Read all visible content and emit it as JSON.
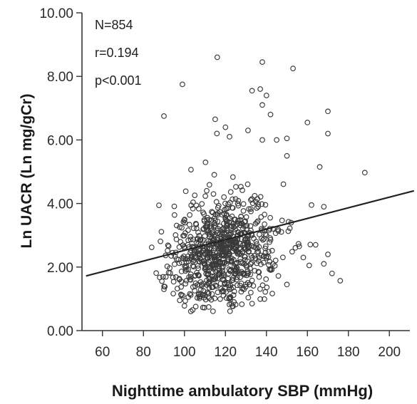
{
  "chart_data": {
    "type": "scatter",
    "xlabel": "Nighttime ambulatory SBP (mmHg)",
    "ylabel": "Ln UACR (Ln mg/gCr)",
    "xlim": [
      50,
      210
    ],
    "ylim": [
      0,
      10
    ],
    "x_ticks": [
      "60",
      "80",
      "100",
      "120",
      "140",
      "160",
      "180",
      "200"
    ],
    "y_ticks": [
      "0.00",
      "2.00",
      "4.00",
      "6.00",
      "8.00",
      "10.00"
    ],
    "annotations": [
      "N=854",
      "r=0.194",
      "p<0.001"
    ],
    "regression_line": {
      "x": [
        52,
        212
      ],
      "y": [
        1.72,
        4.4
      ]
    },
    "grid": false,
    "n_points": 854,
    "points": [
      [
        116,
        8.6
      ],
      [
        138,
        8.45
      ],
      [
        153,
        8.25
      ],
      [
        99,
        7.75
      ],
      [
        137,
        7.6
      ],
      [
        133,
        7.55
      ],
      [
        140,
        7.4
      ],
      [
        138,
        7.1
      ],
      [
        142,
        6.8
      ],
      [
        90,
        6.75
      ],
      [
        170,
        6.9
      ],
      [
        160,
        6.55
      ],
      [
        115,
        6.65
      ],
      [
        170,
        6.2
      ],
      [
        131,
        6.3
      ],
      [
        120,
        6.4
      ],
      [
        122,
        6.1
      ],
      [
        150,
        6.05
      ],
      [
        145,
        6.0
      ],
      [
        138,
        6.0
      ],
      [
        188,
        4.97
      ],
      [
        166,
        5.15
      ],
      [
        150,
        5.5
      ],
      [
        168,
        3.9
      ],
      [
        162,
        3.95
      ],
      [
        84,
        2.62
      ],
      [
        90,
        1.3
      ],
      [
        100,
        0.78
      ],
      [
        104,
        0.65
      ],
      [
        133,
        0.85
      ],
      [
        125,
        0.82
      ],
      [
        128,
        0.83
      ],
      [
        176,
        1.57
      ],
      [
        172,
        1.8
      ],
      [
        168,
        2.1
      ],
      [
        164,
        2.7
      ],
      [
        170,
        2.4
      ],
      [
        158,
        2.3
      ],
      [
        156,
        2.65
      ],
      [
        150,
        1.45
      ]
    ]
  }
}
